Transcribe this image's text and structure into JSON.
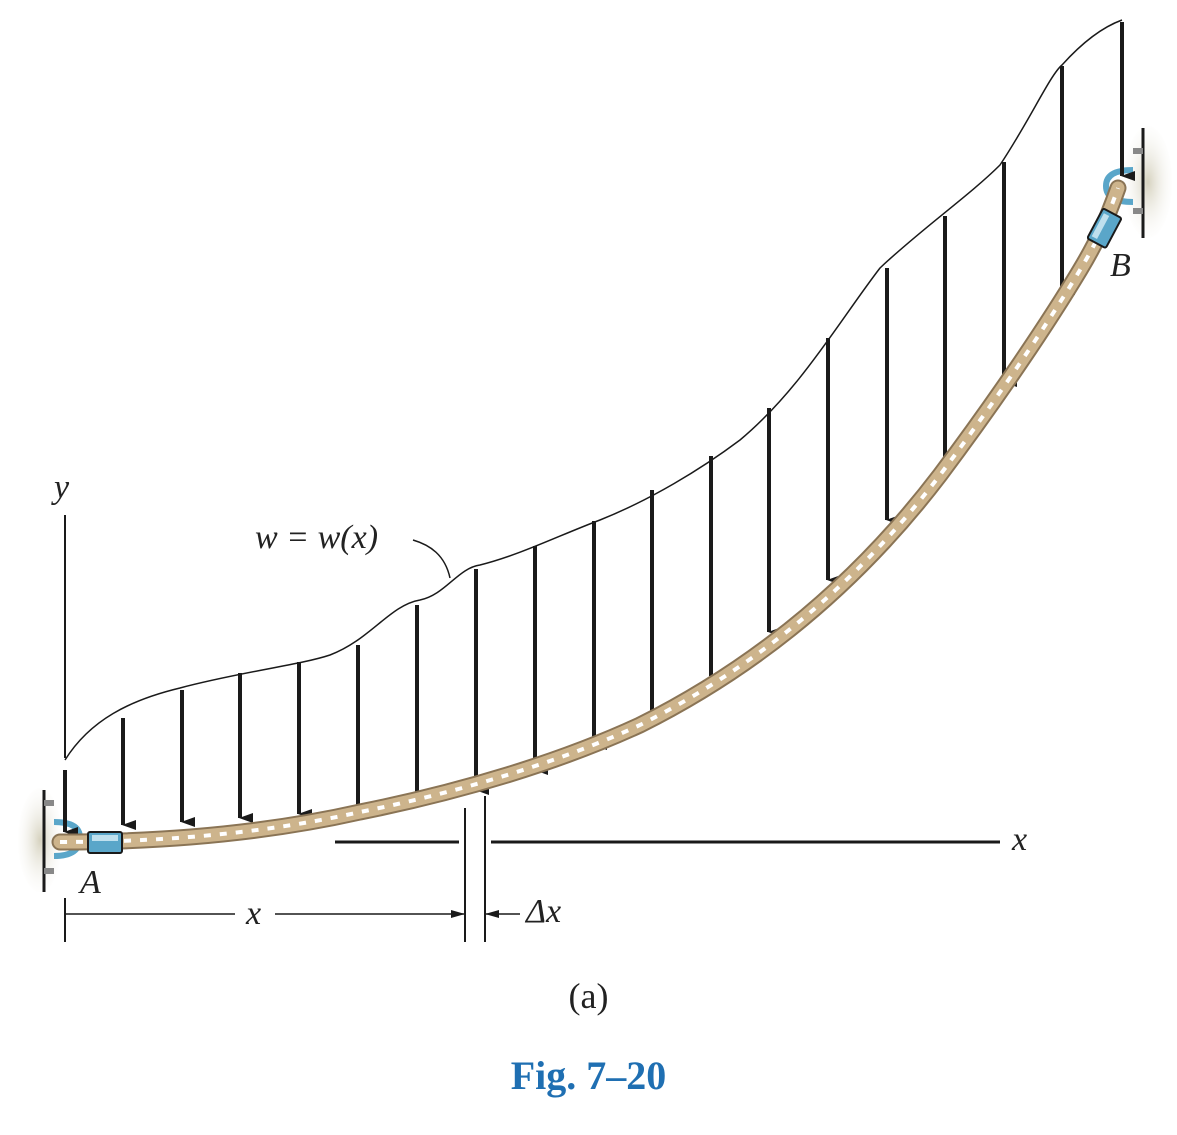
{
  "labels": {
    "y_axis": "y",
    "x_axis": "x",
    "load": "w = w(x)",
    "point_a": "A",
    "point_b": "B",
    "dim_x": "x",
    "dim_dx": "Δx"
  },
  "sub_caption": "(a)",
  "figure_caption": "Fig. 7–20",
  "colors": {
    "caption": "#1f6fb2",
    "rope": "#cdb48c",
    "rope_stripe": "#ffffff",
    "sleeve": "#5aa6c9",
    "wall": "#b4b09c",
    "ink": "#1a1a1a"
  }
}
